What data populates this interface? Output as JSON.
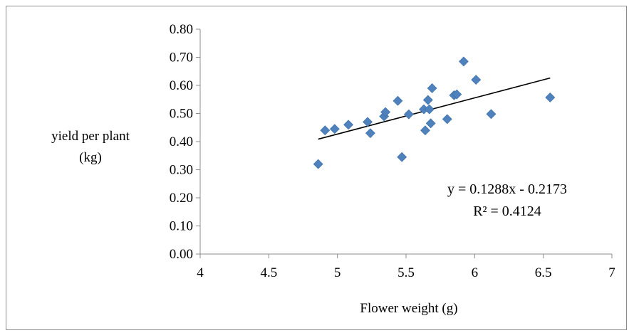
{
  "chart_data": {
    "type": "scatter",
    "title": "",
    "xlabel": "Flower weight (g)",
    "ylabel_lines": [
      "yield per plant",
      "(kg)"
    ],
    "xlim": [
      4,
      7
    ],
    "ylim": [
      0,
      0.8
    ],
    "x_ticks": [
      "4",
      "4.5",
      "5",
      "5.5",
      "6",
      "6.5",
      "7"
    ],
    "y_ticks": [
      "0.00",
      "0.10",
      "0.20",
      "0.30",
      "0.40",
      "0.50",
      "0.60",
      "0.70",
      "0.80"
    ],
    "grid": false,
    "marker_color": "#4F81BD",
    "points": [
      [
        4.86,
        0.32
      ],
      [
        4.91,
        0.44
      ],
      [
        4.98,
        0.445
      ],
      [
        5.08,
        0.46
      ],
      [
        5.22,
        0.47
      ],
      [
        5.24,
        0.43
      ],
      [
        5.34,
        0.49
      ],
      [
        5.35,
        0.505
      ],
      [
        5.44,
        0.545
      ],
      [
        5.47,
        0.345
      ],
      [
        5.52,
        0.497
      ],
      [
        5.63,
        0.515
      ],
      [
        5.64,
        0.44
      ],
      [
        5.66,
        0.548
      ],
      [
        5.67,
        0.515
      ],
      [
        5.68,
        0.465
      ],
      [
        5.69,
        0.59
      ],
      [
        5.8,
        0.48
      ],
      [
        5.85,
        0.565
      ],
      [
        5.87,
        0.568
      ],
      [
        5.92,
        0.685
      ],
      [
        6.01,
        0.62
      ],
      [
        6.12,
        0.498
      ],
      [
        6.55,
        0.557
      ]
    ],
    "trendline": {
      "slope": 0.1288,
      "intercept": -0.2173,
      "x_range": [
        4.86,
        6.55
      ],
      "color": "#000000",
      "equation": "y = 0.1288x - 0.2173",
      "r_squared": "R² = 0.4124"
    }
  }
}
